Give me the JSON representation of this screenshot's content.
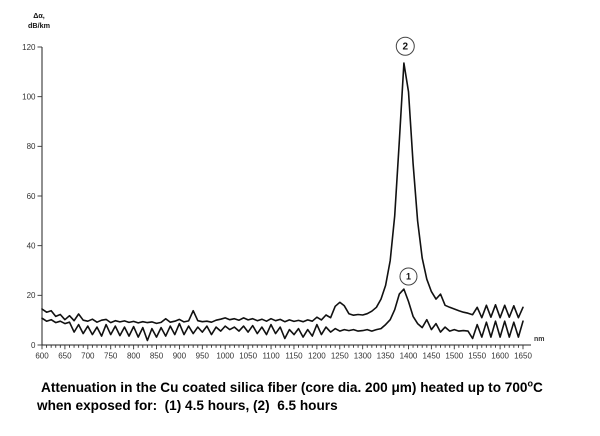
{
  "chart_data": {
    "type": "line",
    "title": "",
    "ylabel_line1": "Δα,",
    "ylabel_line2": "dB/km",
    "x_unit": "nm",
    "xlim": [
      600,
      1650
    ],
    "ylim": [
      0,
      120
    ],
    "x_major_tick_step": 50,
    "x_minor_tick_step": 10,
    "x_tick_labels": [
      600,
      650,
      700,
      750,
      800,
      850,
      900,
      950,
      1000,
      1050,
      1100,
      1150,
      1200,
      1250,
      1300,
      1350,
      1400,
      1450,
      1500,
      1550,
      1600,
      1650
    ],
    "y_ticks": [
      0,
      20,
      40,
      60,
      80,
      100,
      120
    ],
    "grid": false,
    "legend_position": "none",
    "line_color": "#111111",
    "x": [
      600,
      610,
      620,
      630,
      640,
      650,
      660,
      670,
      680,
      690,
      700,
      710,
      720,
      730,
      740,
      750,
      760,
      770,
      780,
      790,
      800,
      810,
      820,
      830,
      840,
      850,
      860,
      870,
      880,
      890,
      900,
      910,
      920,
      930,
      940,
      950,
      960,
      970,
      980,
      990,
      1000,
      1010,
      1020,
      1030,
      1040,
      1050,
      1060,
      1070,
      1080,
      1090,
      1100,
      1110,
      1120,
      1130,
      1140,
      1150,
      1160,
      1170,
      1180,
      1190,
      1200,
      1210,
      1220,
      1230,
      1240,
      1250,
      1260,
      1270,
      1280,
      1290,
      1300,
      1310,
      1320,
      1330,
      1340,
      1350,
      1360,
      1370,
      1380,
      1390,
      1400,
      1410,
      1420,
      1430,
      1440,
      1450,
      1460,
      1470,
      1480,
      1490,
      1500,
      1510,
      1520,
      1530,
      1540,
      1550,
      1560,
      1570,
      1580,
      1590,
      1600,
      1610,
      1620,
      1630,
      1640,
      1650
    ],
    "series": [
      {
        "id": "1",
        "exposure": "4.5 hours",
        "peak_nm": 1390,
        "peak_db_per_km": 22.5,
        "values": [
          10.8,
          9.6,
          10.2,
          9.0,
          9.6,
          8.6,
          9.2,
          5.2,
          8.2,
          4.6,
          7.6,
          4.2,
          7.2,
          3.6,
          8.2,
          4.2,
          7.6,
          3.8,
          7.2,
          3.6,
          7.4,
          3.2,
          7.0,
          1.8,
          6.6,
          3.2,
          7.0,
          3.6,
          7.6,
          4.2,
          8.6,
          4.2,
          7.6,
          4.6,
          7.2,
          5.2,
          7.6,
          4.2,
          7.2,
          5.6,
          7.6,
          6.2,
          7.2,
          5.6,
          7.6,
          5.2,
          7.8,
          4.6,
          7.2,
          4.2,
          8.2,
          4.6,
          7.2,
          2.6,
          6.2,
          4.2,
          6.6,
          3.2,
          6.2,
          3.6,
          8.2,
          4.2,
          7.2,
          5.2,
          6.6,
          5.6,
          6.2,
          5.8,
          6.2,
          5.6,
          5.8,
          6.2,
          5.6,
          6.2,
          6.6,
          8.2,
          10.2,
          14.2,
          20.5,
          22.5,
          17.5,
          11.5,
          8.6,
          7.0,
          10.2,
          6.2,
          8.6,
          5.2,
          7.2,
          5.6,
          6.2,
          5.6,
          5.8,
          5.6,
          2.6,
          8.2,
          3.2,
          9.2,
          3.2,
          9.6,
          3.2,
          9.6,
          3.2,
          9.2,
          3.2,
          9.6
        ]
      },
      {
        "id": "2",
        "exposure": "6.5 hours",
        "peak_nm": 1390,
        "peak_db_per_km": 113.5,
        "values": [
          14.5,
          13.2,
          13.8,
          11.5,
          12.3,
          10.2,
          11.8,
          9.8,
          12.5,
          10.0,
          9.6,
          10.4,
          9.2,
          10.0,
          10.3,
          9.0,
          9.8,
          9.3,
          9.7,
          9.1,
          9.5,
          8.9,
          9.4,
          9.0,
          9.3,
          8.7,
          9.1,
          10.6,
          9.2,
          9.6,
          10.3,
          9.3,
          9.7,
          13.8,
          9.8,
          9.4,
          9.6,
          9.2,
          10.0,
          10.4,
          10.9,
          10.2,
          10.6,
          10.0,
          10.9,
          10.1,
          10.6,
          9.8,
          10.4,
          9.6,
          10.6,
          9.8,
          10.3,
          9.4,
          10.1,
          9.5,
          9.9,
          9.4,
          10.1,
          9.6,
          11.2,
          10.1,
          12.1,
          11.0,
          15.6,
          17.2,
          15.8,
          12.6,
          12.0,
          12.3,
          12.1,
          12.6,
          13.6,
          15.2,
          18.5,
          24.0,
          34.0,
          52.0,
          82.0,
          113.5,
          102.0,
          73.0,
          50.0,
          35.0,
          26.5,
          21.5,
          18.5,
          20.5,
          16.0,
          15.2,
          14.5,
          13.8,
          13.2,
          12.8,
          12.2,
          15.2,
          11.0,
          16.0,
          11.2,
          16.2,
          11.0,
          16.0,
          11.2,
          15.8,
          11.0,
          15.2
        ]
      }
    ],
    "annotations": [
      {
        "text": "2",
        "x_nm": 1393,
        "y_db": 120.3,
        "r": 9,
        "font_size": 10
      },
      {
        "text": "1",
        "x_nm": 1400,
        "y_db": 27.6,
        "r": 8.5,
        "font_size": 9
      }
    ]
  },
  "caption": {
    "line1_pre": "Attenuation in the Cu coated silica fiber (core dia. 200 μm) heated up to 700",
    "line1_sup": "o",
    "line1_post": "C",
    "line2": "when exposed for:  (1) 4.5 hours, (2)  6.5 hours"
  }
}
